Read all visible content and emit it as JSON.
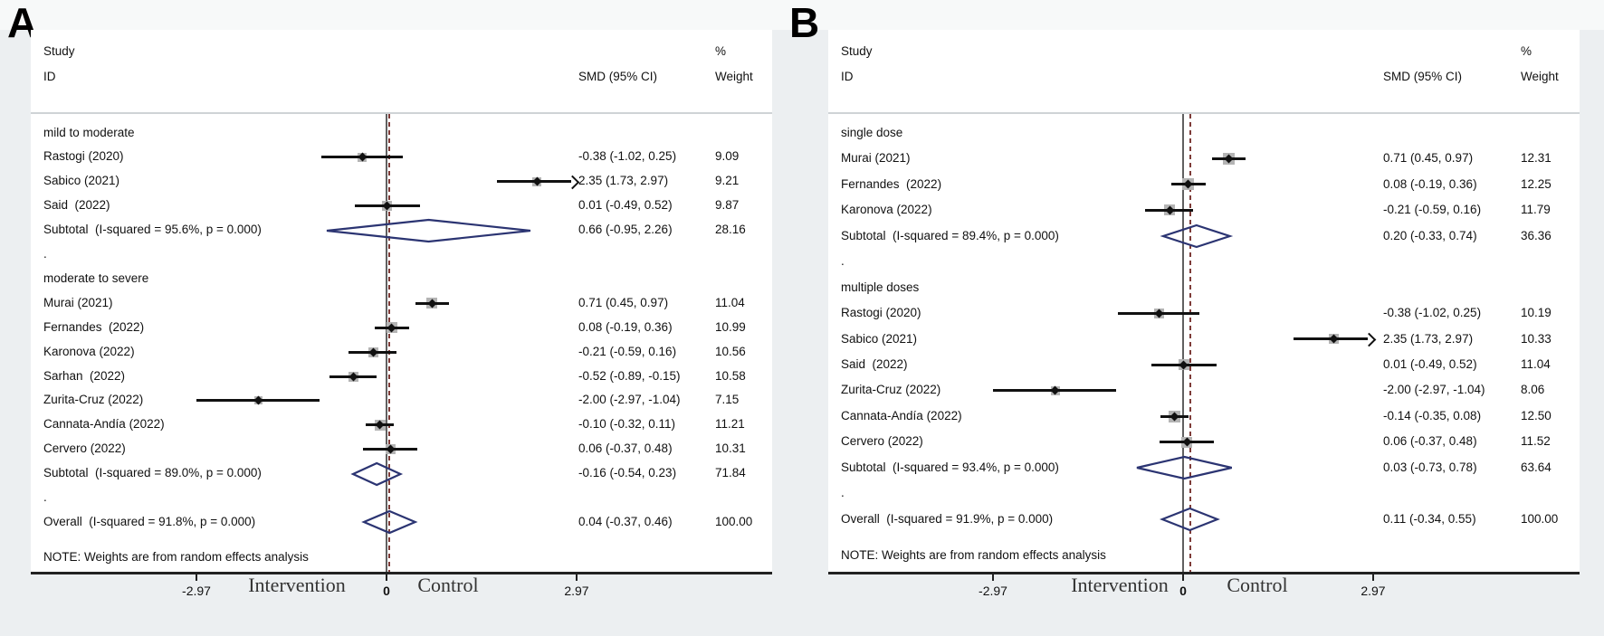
{
  "chart_data": {
    "type": "forest",
    "title": "",
    "x_axis": {
      "range": [
        -2.97,
        2.97
      ],
      "tick_values": [
        -2.97,
        0,
        2.97
      ]
    },
    "colors": {
      "background": "#eceff1",
      "top_strip": "#f7f9f9",
      "panel_bg": "#ffffff",
      "text": "#111111",
      "separator": "#cfd3d6",
      "axis": "#222222",
      "null_line": "#606060",
      "overall_dashed_line": "#7e3b38",
      "ci_line": "#111111",
      "weight_square": "#b4b4b4",
      "pooled_diamond": "#2b3472"
    },
    "panels": [
      {
        "letter": "A",
        "header": {
          "study_line1": "Study",
          "study_line2": "ID",
          "smd": "SMD (95% CI)",
          "pct": "%",
          "weight": "Weight"
        },
        "note": "NOTE: Weights are from random effects analysis",
        "axis": {
          "ticks": [
            {
              "label": "-2.97",
              "value": -2.97
            },
            {
              "label": "0",
              "value": 0
            },
            {
              "label": "2.97",
              "value": 2.97
            }
          ],
          "left_label": "Intervention",
          "right_label": "Control",
          "null_value": 0,
          "overall_line_value": 0.04
        },
        "rows": [
          {
            "type": "group",
            "label": "mild to moderate"
          },
          {
            "type": "study",
            "label": "Rastogi (2020)",
            "smd": -0.38,
            "lo": -1.02,
            "hi": 0.25,
            "smd_text": "-0.38 (-1.02, 0.25)",
            "weight": "9.09",
            "weight_num": 9.09
          },
          {
            "type": "study",
            "label": "Sabico (2021)",
            "smd": 2.35,
            "lo": 1.73,
            "hi": 2.97,
            "smd_text": "2.35 (1.73, 2.97)",
            "weight": "9.21",
            "weight_num": 9.21,
            "arrow": true
          },
          {
            "type": "study",
            "label": "Said  (2022)",
            "smd": 0.01,
            "lo": -0.49,
            "hi": 0.52,
            "smd_text": "0.01 (-0.49, 0.52)",
            "weight": "9.87",
            "weight_num": 9.87
          },
          {
            "type": "subtotal",
            "label": "Subtotal  (I-squared = 95.6%, p = 0.000)",
            "smd": 0.66,
            "lo": -0.95,
            "hi": 2.26,
            "smd_text": "0.66 (-0.95, 2.26)",
            "weight": "28.16"
          },
          {
            "type": "dot",
            "label": "."
          },
          {
            "type": "group",
            "label": "moderate to severe"
          },
          {
            "type": "study",
            "label": "Murai (2021)",
            "smd": 0.71,
            "lo": 0.45,
            "hi": 0.97,
            "smd_text": "0.71 (0.45, 0.97)",
            "weight": "11.04",
            "weight_num": 11.04
          },
          {
            "type": "study",
            "label": "Fernandes  (2022)",
            "smd": 0.08,
            "lo": -0.19,
            "hi": 0.36,
            "smd_text": "0.08 (-0.19, 0.36)",
            "weight": "10.99",
            "weight_num": 10.99
          },
          {
            "type": "study",
            "label": "Karonova (2022)",
            "smd": -0.21,
            "lo": -0.59,
            "hi": 0.16,
            "smd_text": "-0.21 (-0.59, 0.16)",
            "weight": "10.56",
            "weight_num": 10.56
          },
          {
            "type": "study",
            "label": "Sarhan  (2022)",
            "smd": -0.52,
            "lo": -0.89,
            "hi": -0.15,
            "smd_text": "-0.52 (-0.89, -0.15)",
            "weight": "10.58",
            "weight_num": 10.58
          },
          {
            "type": "study",
            "label": "Zurita-Cruz (2022)",
            "smd": -2.0,
            "lo": -2.97,
            "hi": -1.04,
            "smd_text": "-2.00 (-2.97, -1.04)",
            "weight": "7.15",
            "weight_num": 7.15
          },
          {
            "type": "study",
            "label": "Cannata-Andía (2022)",
            "smd": -0.1,
            "lo": -0.32,
            "hi": 0.11,
            "smd_text": "-0.10 (-0.32, 0.11)",
            "weight": "11.21",
            "weight_num": 11.21
          },
          {
            "type": "study",
            "label": "Cervero (2022)",
            "smd": 0.06,
            "lo": -0.37,
            "hi": 0.48,
            "smd_text": "0.06 (-0.37, 0.48)",
            "weight": "10.31",
            "weight_num": 10.31
          },
          {
            "type": "subtotal",
            "label": "Subtotal  (I-squared = 89.0%, p = 0.000)",
            "smd": -0.16,
            "lo": -0.54,
            "hi": 0.23,
            "smd_text": "-0.16 (-0.54, 0.23)",
            "weight": "71.84"
          },
          {
            "type": "dot",
            "label": "."
          },
          {
            "type": "overall",
            "label": "Overall  (I-squared = 91.8%, p = 0.000)",
            "smd": 0.04,
            "lo": -0.37,
            "hi": 0.46,
            "smd_text": "0.04 (-0.37, 0.46)",
            "weight": "100.00"
          }
        ]
      },
      {
        "letter": "B",
        "header": {
          "study_line1": "Study",
          "study_line2": "ID",
          "smd": "SMD (95% CI)",
          "pct": "%",
          "weight": "Weight"
        },
        "note": "NOTE: Weights are from random effects analysis",
        "axis": {
          "ticks": [
            {
              "label": "-2.97",
              "value": -2.97
            },
            {
              "label": "0",
              "value": 0
            },
            {
              "label": "2.97",
              "value": 2.97
            }
          ],
          "left_label": "Intervention",
          "right_label": "Control",
          "null_value": 0,
          "overall_line_value": 0.11
        },
        "rows": [
          {
            "type": "group",
            "label": "single dose"
          },
          {
            "type": "study",
            "label": "Murai (2021)",
            "smd": 0.71,
            "lo": 0.45,
            "hi": 0.97,
            "smd_text": "0.71 (0.45, 0.97)",
            "weight": "12.31",
            "weight_num": 12.31
          },
          {
            "type": "study",
            "label": "Fernandes  (2022)",
            "smd": 0.08,
            "lo": -0.19,
            "hi": 0.36,
            "smd_text": "0.08 (-0.19, 0.36)",
            "weight": "12.25",
            "weight_num": 12.25
          },
          {
            "type": "study",
            "label": "Karonova (2022)",
            "smd": -0.21,
            "lo": -0.59,
            "hi": 0.16,
            "smd_text": "-0.21 (-0.59, 0.16)",
            "weight": "11.79",
            "weight_num": 11.79
          },
          {
            "type": "subtotal",
            "label": "Subtotal  (I-squared = 89.4%, p = 0.000)",
            "smd": 0.2,
            "lo": -0.33,
            "hi": 0.74,
            "smd_text": "0.20 (-0.33, 0.74)",
            "weight": "36.36"
          },
          {
            "type": "dot",
            "label": "."
          },
          {
            "type": "group",
            "label": "multiple doses"
          },
          {
            "type": "study",
            "label": "Rastogi (2020)",
            "smd": -0.38,
            "lo": -1.02,
            "hi": 0.25,
            "smd_text": "-0.38 (-1.02, 0.25)",
            "weight": "10.19",
            "weight_num": 10.19
          },
          {
            "type": "study",
            "label": "Sabico (2021)",
            "smd": 2.35,
            "lo": 1.73,
            "hi": 2.97,
            "smd_text": "2.35 (1.73, 2.97)",
            "weight": "10.33",
            "weight_num": 10.33,
            "arrow": true
          },
          {
            "type": "study",
            "label": "Said  (2022)",
            "smd": 0.01,
            "lo": -0.49,
            "hi": 0.52,
            "smd_text": "0.01 (-0.49, 0.52)",
            "weight": "11.04",
            "weight_num": 11.04
          },
          {
            "type": "study",
            "label": "Zurita-Cruz (2022)",
            "smd": -2.0,
            "lo": -2.97,
            "hi": -1.04,
            "smd_text": "-2.00 (-2.97, -1.04)",
            "weight": "8.06",
            "weight_num": 8.06
          },
          {
            "type": "study",
            "label": "Cannata-Andía (2022)",
            "smd": -0.14,
            "lo": -0.35,
            "hi": 0.08,
            "smd_text": "-0.14 (-0.35, 0.08)",
            "weight": "12.50",
            "weight_num": 12.5
          },
          {
            "type": "study",
            "label": "Cervero (2022)",
            "smd": 0.06,
            "lo": -0.37,
            "hi": 0.48,
            "smd_text": "0.06 (-0.37, 0.48)",
            "weight": "11.52",
            "weight_num": 11.52
          },
          {
            "type": "subtotal",
            "label": "Subtotal  (I-squared = 93.4%, p = 0.000)",
            "smd": 0.03,
            "lo": -0.73,
            "hi": 0.78,
            "smd_text": "0.03 (-0.73, 0.78)",
            "weight": "63.64"
          },
          {
            "type": "dot",
            "label": "."
          },
          {
            "type": "overall",
            "label": "Overall  (I-squared = 91.9%, p = 0.000)",
            "smd": 0.11,
            "lo": -0.34,
            "hi": 0.55,
            "smd_text": "0.11 (-0.34, 0.55)",
            "weight": "100.00"
          }
        ]
      }
    ]
  }
}
